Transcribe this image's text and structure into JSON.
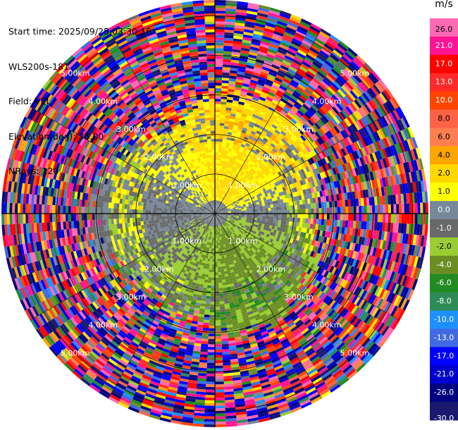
{
  "info": {
    "start_time": "Start time: 2025/09/25 03:30:16",
    "instrument": "WLS200s-181",
    "field": "Field: VEL",
    "elevation": "Elevation(deg): 35.00",
    "nrays": "NRays: 120"
  },
  "chart_data": {
    "type": "heatmap",
    "projection": "polar PPI",
    "field": "VEL",
    "units": "m/s",
    "n_rays": 120,
    "range_rings_km": [
      1.0,
      2.0,
      3.0,
      4.0,
      5.0
    ],
    "ring_labels": [
      "1.00km",
      "2.00km",
      "3.00km",
      "4.00km",
      "5.00km"
    ],
    "max_range_km": 5.4,
    "spoke_interval_deg": 30,
    "colorbar": {
      "unit": "m/s",
      "tick_labels": [
        "26.0",
        "21.0",
        "17.0",
        "13.0",
        "10.0",
        "8.0",
        "6.0",
        "4.0",
        "2.0",
        "1.0",
        "0.0",
        "-1.0",
        "-2.0",
        "-4.0",
        "-6.0",
        "-8.0",
        "-10.0",
        "-13.0",
        "-17.0",
        "-21.0",
        "-26.0",
        "-30.0"
      ],
      "bands": [
        {
          "min": 26,
          "max": 30,
          "color": "#ff69b4"
        },
        {
          "min": 21,
          "max": 26,
          "color": "#ff1493"
        },
        {
          "min": 17,
          "max": 21,
          "color": "#ff0000"
        },
        {
          "min": 13,
          "max": 17,
          "color": "#ff2a2a"
        },
        {
          "min": 10,
          "max": 13,
          "color": "#ff4500"
        },
        {
          "min": 8,
          "max": 10,
          "color": "#ff6347"
        },
        {
          "min": 6,
          "max": 8,
          "color": "#ff7f50"
        },
        {
          "min": 4,
          "max": 6,
          "color": "#ffa500"
        },
        {
          "min": 2,
          "max": 4,
          "color": "#ffd700"
        },
        {
          "min": 1,
          "max": 2,
          "color": "#ffff00"
        },
        {
          "min": 0,
          "max": 1,
          "color": "#778899"
        },
        {
          "min": -1,
          "max": 0,
          "color": "#696969"
        },
        {
          "min": -2,
          "max": -1,
          "color": "#9acd32"
        },
        {
          "min": -4,
          "max": -2,
          "color": "#6b8e23"
        },
        {
          "min": -6,
          "max": -4,
          "color": "#228b22"
        },
        {
          "min": -8,
          "max": -6,
          "color": "#2e8b57"
        },
        {
          "min": -10,
          "max": -8,
          "color": "#1e90ff"
        },
        {
          "min": -13,
          "max": -10,
          "color": "#4169e1"
        },
        {
          "min": -17,
          "max": -13,
          "color": "#0000ff"
        },
        {
          "min": -21,
          "max": -17,
          "color": "#0000cd"
        },
        {
          "min": -26,
          "max": -21,
          "color": "#000080"
        },
        {
          "min": -30,
          "max": -26,
          "color": "#191970"
        }
      ]
    },
    "wind_profile": [
      {
        "range_km": 0.3,
        "dominant": "near zero (gray)"
      },
      {
        "range_km": 1.0,
        "dominant": "yellow north / green south, ~1 to 3 m/s"
      },
      {
        "range_km": 2.0,
        "dominant": "mixed yellow / olive / gray"
      },
      {
        "range_km": 3.0,
        "dominant": "noisy, all colors"
      },
      {
        "range_km": 5.0,
        "dominant": "noise"
      }
    ]
  }
}
